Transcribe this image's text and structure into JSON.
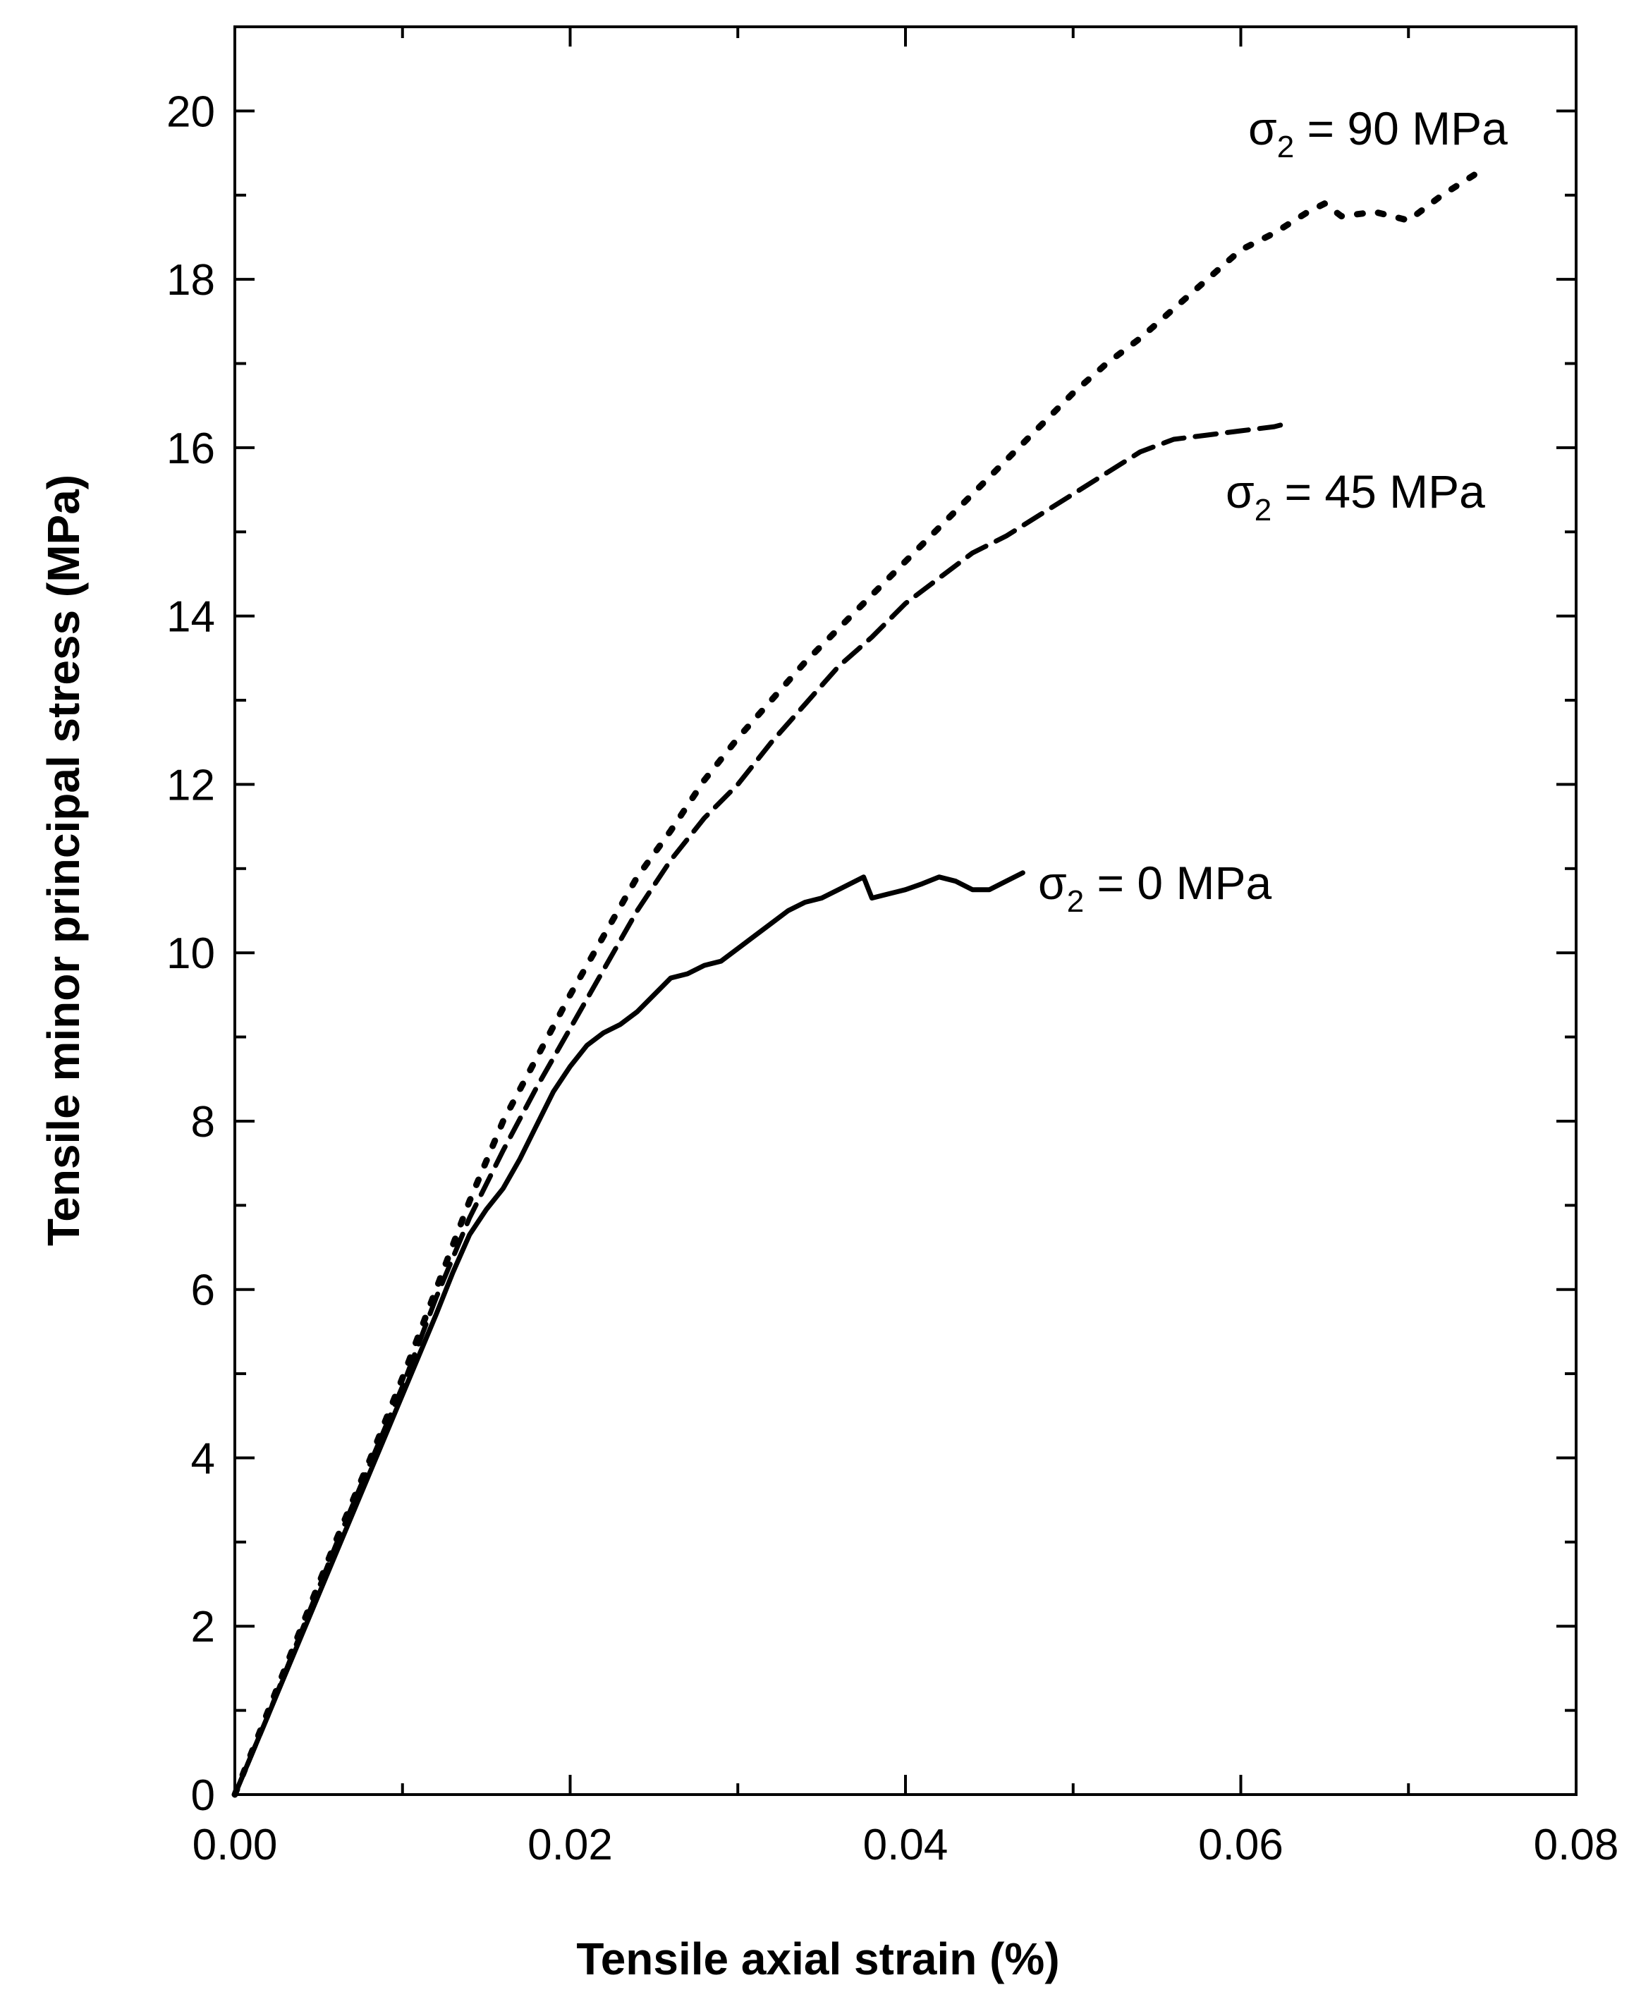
{
  "chart_data": {
    "type": "line",
    "title": "",
    "xlabel": "Tensile axial strain (%)",
    "ylabel": "Tensile minor principal stress (MPa)",
    "xlim": [
      0,
      0.08
    ],
    "ylim": [
      0,
      21
    ],
    "x_ticks": [
      "0.00",
      "0.02",
      "0.04",
      "0.06",
      "0.08"
    ],
    "y_ticks": [
      "0",
      "2",
      "4",
      "6",
      "8",
      "10",
      "12",
      "14",
      "16",
      "18",
      "20"
    ],
    "grid": false,
    "series": [
      {
        "name": "σ2 = 0 MPa",
        "label_symbol": "σ",
        "label_sub": "2",
        "label_rest": " = 0 MPa",
        "style": "solid",
        "color": "#000000",
        "points": [
          [
            0,
            0
          ],
          [
            0.002,
            0.95
          ],
          [
            0.004,
            1.9
          ],
          [
            0.006,
            2.85
          ],
          [
            0.008,
            3.8
          ],
          [
            0.01,
            4.75
          ],
          [
            0.012,
            5.7
          ],
          [
            0.013,
            6.2
          ],
          [
            0.014,
            6.65
          ],
          [
            0.015,
            6.95
          ],
          [
            0.016,
            7.2
          ],
          [
            0.017,
            7.55
          ],
          [
            0.018,
            7.95
          ],
          [
            0.019,
            8.35
          ],
          [
            0.02,
            8.65
          ],
          [
            0.021,
            8.9
          ],
          [
            0.022,
            9.05
          ],
          [
            0.023,
            9.15
          ],
          [
            0.024,
            9.3
          ],
          [
            0.025,
            9.5
          ],
          [
            0.026,
            9.7
          ],
          [
            0.027,
            9.75
          ],
          [
            0.028,
            9.85
          ],
          [
            0.029,
            9.9
          ],
          [
            0.03,
            10.05
          ],
          [
            0.031,
            10.2
          ],
          [
            0.032,
            10.35
          ],
          [
            0.033,
            10.5
          ],
          [
            0.034,
            10.6
          ],
          [
            0.035,
            10.65
          ],
          [
            0.036,
            10.75
          ],
          [
            0.037,
            10.85
          ],
          [
            0.0375,
            10.9
          ],
          [
            0.038,
            10.65
          ],
          [
            0.039,
            10.7
          ],
          [
            0.04,
            10.75
          ],
          [
            0.041,
            10.82
          ],
          [
            0.042,
            10.9
          ],
          [
            0.043,
            10.85
          ],
          [
            0.044,
            10.75
          ],
          [
            0.045,
            10.75
          ],
          [
            0.046,
            10.85
          ],
          [
            0.047,
            10.95
          ]
        ]
      },
      {
        "name": "σ2 = 45 MPa",
        "label_symbol": "σ",
        "label_sub": "2",
        "label_rest": " = 45 MPa",
        "style": "dashed",
        "color": "#000000",
        "points": [
          [
            0,
            0
          ],
          [
            0.002,
            0.95
          ],
          [
            0.004,
            1.95
          ],
          [
            0.006,
            2.95
          ],
          [
            0.008,
            3.9
          ],
          [
            0.01,
            4.85
          ],
          [
            0.012,
            5.9
          ],
          [
            0.014,
            6.85
          ],
          [
            0.016,
            7.65
          ],
          [
            0.018,
            8.4
          ],
          [
            0.02,
            9.1
          ],
          [
            0.022,
            9.8
          ],
          [
            0.024,
            10.5
          ],
          [
            0.026,
            11.1
          ],
          [
            0.028,
            11.6
          ],
          [
            0.03,
            12.0
          ],
          [
            0.032,
            12.5
          ],
          [
            0.034,
            12.95
          ],
          [
            0.036,
            13.4
          ],
          [
            0.038,
            13.75
          ],
          [
            0.04,
            14.15
          ],
          [
            0.042,
            14.45
          ],
          [
            0.044,
            14.75
          ],
          [
            0.046,
            14.95
          ],
          [
            0.048,
            15.2
          ],
          [
            0.05,
            15.45
          ],
          [
            0.052,
            15.7
          ],
          [
            0.054,
            15.95
          ],
          [
            0.056,
            16.1
          ],
          [
            0.058,
            16.15
          ],
          [
            0.06,
            16.2
          ],
          [
            0.062,
            16.25
          ],
          [
            0.063,
            16.3
          ]
        ]
      },
      {
        "name": "σ2 = 90 MPa",
        "label_symbol": "σ",
        "label_sub": "2",
        "label_rest": " = 90 MPa",
        "style": "dotted",
        "color": "#000000",
        "points": [
          [
            0,
            0
          ],
          [
            0.002,
            1.0
          ],
          [
            0.004,
            2.0
          ],
          [
            0.006,
            3.0
          ],
          [
            0.008,
            3.95
          ],
          [
            0.01,
            4.95
          ],
          [
            0.012,
            6.0
          ],
          [
            0.014,
            7.05
          ],
          [
            0.016,
            8.0
          ],
          [
            0.018,
            8.75
          ],
          [
            0.02,
            9.5
          ],
          [
            0.022,
            10.2
          ],
          [
            0.024,
            10.9
          ],
          [
            0.026,
            11.45
          ],
          [
            0.028,
            12.05
          ],
          [
            0.03,
            12.55
          ],
          [
            0.032,
            13.0
          ],
          [
            0.034,
            13.45
          ],
          [
            0.036,
            13.85
          ],
          [
            0.038,
            14.25
          ],
          [
            0.04,
            14.65
          ],
          [
            0.042,
            15.05
          ],
          [
            0.044,
            15.45
          ],
          [
            0.046,
            15.85
          ],
          [
            0.048,
            16.25
          ],
          [
            0.05,
            16.65
          ],
          [
            0.052,
            17.0
          ],
          [
            0.054,
            17.3
          ],
          [
            0.056,
            17.65
          ],
          [
            0.058,
            18.0
          ],
          [
            0.06,
            18.35
          ],
          [
            0.062,
            18.55
          ],
          [
            0.064,
            18.8
          ],
          [
            0.065,
            18.9
          ],
          [
            0.066,
            18.75
          ],
          [
            0.068,
            18.8
          ],
          [
            0.07,
            18.7
          ],
          [
            0.072,
            19.0
          ],
          [
            0.074,
            19.25
          ]
        ]
      }
    ]
  }
}
